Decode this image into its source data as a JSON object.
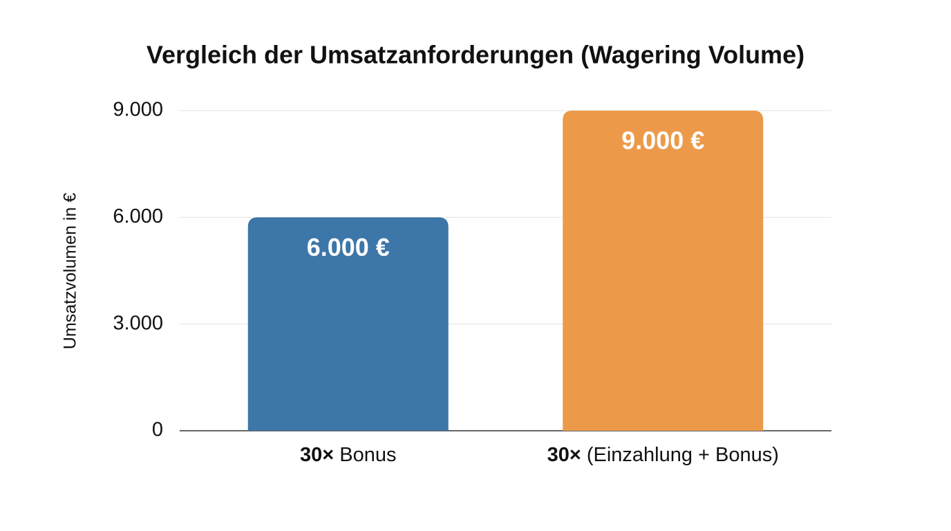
{
  "chart_data": {
    "type": "bar",
    "title": "Vergleich der Umsatzanforderungen (Wagering Volume)",
    "y_label": "Umsatzvolumen in €",
    "categories": [
      "30× Bonus",
      "30× (Einzahlung + Bonus)"
    ],
    "values": [
      6000,
      9000
    ],
    "value_labels": [
      "6.000 €",
      "9.000 €"
    ],
    "colors": [
      "#3d76a8",
      "#ec9a4a"
    ],
    "ylim": [
      0,
      9000
    ],
    "yticks": [
      0,
      {
        "value": 3000,
        "label": "3.000"
      },
      {
        "value": 6000,
        "label": "6.000"
      },
      {
        "value": 9000,
        "label": "9.000"
      }
    ],
    "grid": true
  }
}
